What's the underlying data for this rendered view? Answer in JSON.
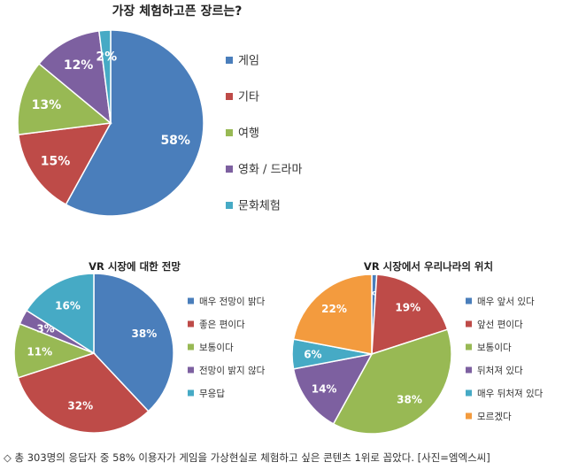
{
  "chart_data": [
    {
      "type": "pie",
      "title": "가장 체험하고픈 장르는?",
      "categories": [
        "게임",
        "기타",
        "여행",
        "영화 / 드라마",
        "문화체험"
      ],
      "values": [
        58,
        15,
        13,
        12,
        2
      ],
      "labels": [
        "58%",
        "15%",
        "13%",
        "12%",
        "2%"
      ],
      "colors": [
        "#4a7ebb",
        "#be4b48",
        "#98b954",
        "#7d60a0",
        "#46aac5"
      ],
      "legend": "right"
    },
    {
      "type": "pie",
      "title": "VR 시장에 대한 전망",
      "categories": [
        "매우 전망이 밝다",
        "좋은 편이다",
        "보통이다",
        "전망이 밝지 않다",
        "무응답"
      ],
      "values": [
        38,
        32,
        11,
        3,
        16
      ],
      "labels": [
        "38%",
        "32%",
        "11%",
        "3%",
        "16%"
      ],
      "colors": [
        "#4a7ebb",
        "#be4b48",
        "#98b954",
        "#7d60a0",
        "#46aac5"
      ],
      "legend": "right"
    },
    {
      "type": "pie",
      "title": "VR 시장에서 우리나라의 위치",
      "categories": [
        "매우 앞서 있다",
        "앞선 편이다",
        "보통이다",
        "뒤처져 있다",
        "매우 뒤처져 있다",
        "모르겠다"
      ],
      "values": [
        1,
        19,
        38,
        14,
        6,
        22
      ],
      "labels": [
        "1%",
        "19%",
        "38%",
        "14%",
        "6%",
        "22%"
      ],
      "colors": [
        "#4a7ebb",
        "#be4b48",
        "#98b954",
        "#7d60a0",
        "#46aac5",
        "#f39b3e"
      ],
      "legend": "right"
    }
  ],
  "caption": "◇ 총 303명의 응답자 중 58% 이용자가 게임을 가상현실로 체험하고 싶은 콘텐츠 1위로 꼽았다. [사진=엠엑스씨]"
}
